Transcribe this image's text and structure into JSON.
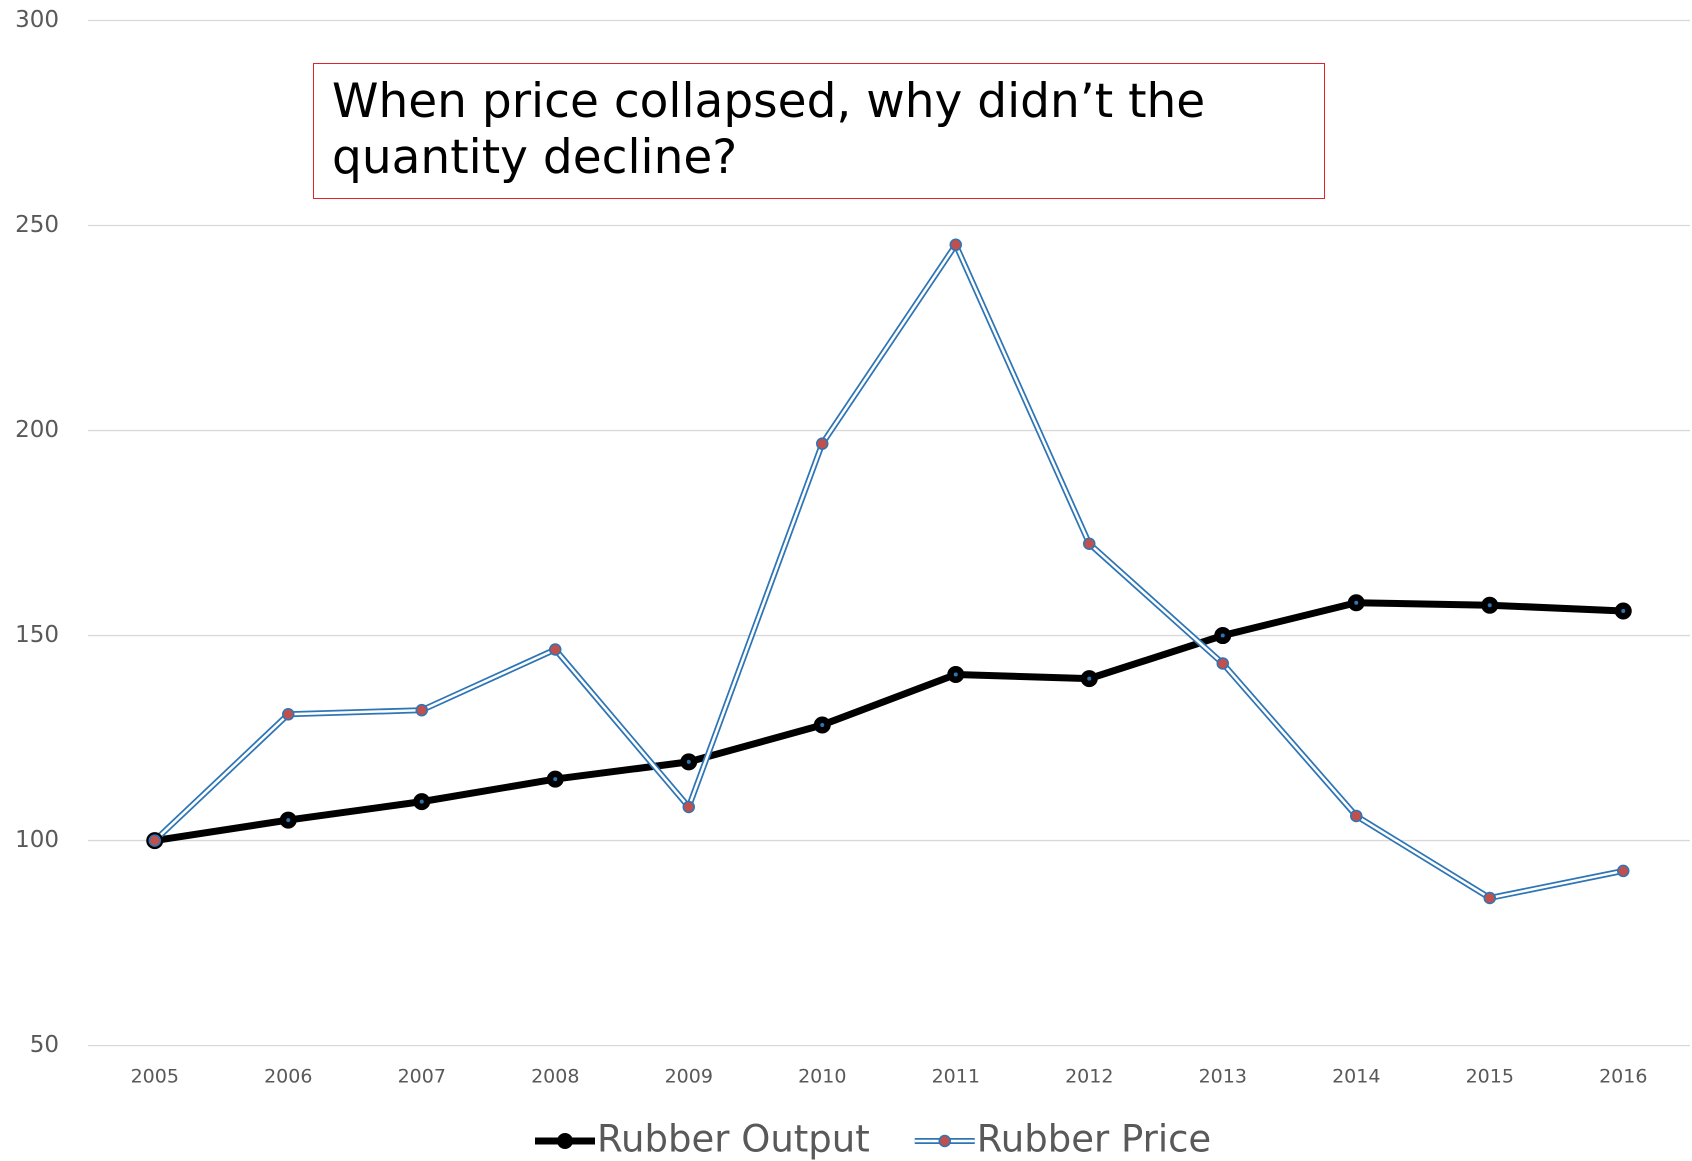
{
  "chart_data": {
    "type": "line",
    "annotation": "When price collapsed, why didn’t the quantity decline?",
    "categories": [
      "2005",
      "2006",
      "2007",
      "2008",
      "2009",
      "2010",
      "2011",
      "2012",
      "2013",
      "2014",
      "2015",
      "2016"
    ],
    "series": [
      {
        "name": "Rubber Output",
        "color": "#000000",
        "values": [
          100,
          105,
          109.5,
          115,
          119.2,
          128.2,
          140.5,
          139.5,
          150,
          158,
          157.4,
          156
        ]
      },
      {
        "name": "Rubber Price",
        "color": "#2e75b6",
        "values": [
          100,
          130.8,
          131.8,
          146.6,
          108.2,
          196.8,
          245.3,
          172.4,
          143.2,
          106,
          86,
          92.6
        ]
      }
    ],
    "ylim": [
      50,
      300
    ],
    "yticks": [
      50,
      100,
      150,
      200,
      250,
      300
    ],
    "grid": true
  }
}
